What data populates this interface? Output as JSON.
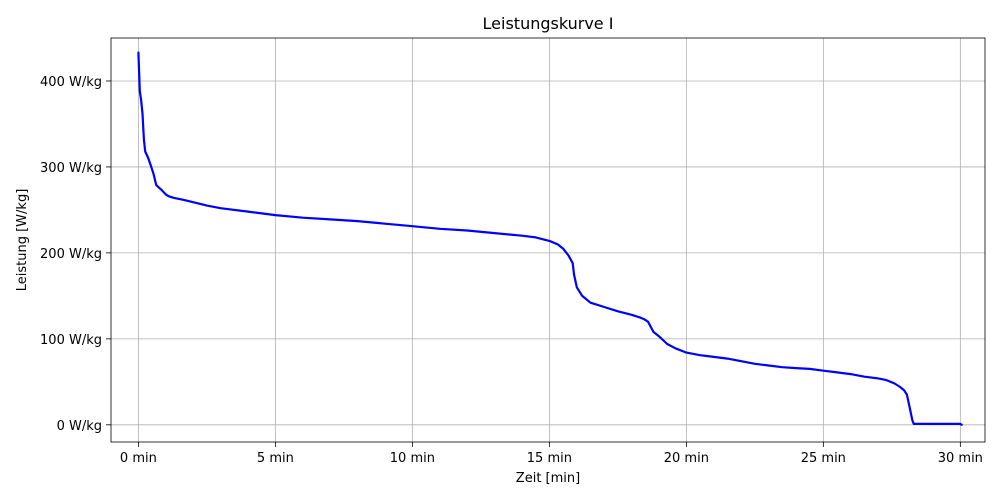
{
  "chart_data": {
    "type": "line",
    "title": "Leistungskurve I",
    "xlabel": "Zeit [min]",
    "ylabel": "Leistung [W/kg]",
    "xlim": [
      -1.0,
      30.9
    ],
    "ylim": [
      -20,
      450
    ],
    "grid": true,
    "x_ticks": [
      {
        "value": 0,
        "label": "0 min"
      },
      {
        "value": 5,
        "label": "5 min"
      },
      {
        "value": 10,
        "label": "10 min"
      },
      {
        "value": 15,
        "label": "15 min"
      },
      {
        "value": 20,
        "label": "20 min"
      },
      {
        "value": 25,
        "label": "25 min"
      },
      {
        "value": 30,
        "label": "30 min"
      }
    ],
    "y_ticks": [
      {
        "value": 0,
        "label": "0 W/kg"
      },
      {
        "value": 100,
        "label": "100 W/kg"
      },
      {
        "value": 200,
        "label": "200 W/kg"
      },
      {
        "value": 300,
        "label": "300 W/kg"
      },
      {
        "value": 400,
        "label": "400 W/kg"
      }
    ],
    "series": [
      {
        "color": "#0000ff",
        "x": [
          0.0,
          0.05,
          0.1,
          0.15,
          0.2,
          0.25,
          0.35,
          0.45,
          0.55,
          0.65,
          0.75,
          0.85,
          1.0,
          1.1,
          1.3,
          1.6,
          2.0,
          2.5,
          3.0,
          4.0,
          5.0,
          6.0,
          7.0,
          8.0,
          9.0,
          10.0,
          11.0,
          12.0,
          13.0,
          14.0,
          14.5,
          15.0,
          15.3,
          15.5,
          15.7,
          15.85,
          15.9,
          16.0,
          16.2,
          16.5,
          17.0,
          17.5,
          18.0,
          18.3,
          18.45,
          18.6,
          18.8,
          19.0,
          19.3,
          19.6,
          20.0,
          20.5,
          21.0,
          21.5,
          22.0,
          22.5,
          23.0,
          23.5,
          24.0,
          24.5,
          25.0,
          25.5,
          26.0,
          26.5,
          27.0,
          27.3,
          27.6,
          27.8,
          27.95,
          28.05,
          28.15,
          28.25,
          28.3,
          28.4,
          29.0,
          29.5,
          30.0,
          30.05
        ],
        "y": [
          433,
          388,
          378,
          362,
          332,
          318,
          311,
          302,
          292,
          279,
          276,
          273,
          268,
          266,
          264,
          262,
          259,
          255,
          252,
          248,
          244,
          241,
          239,
          237,
          234,
          231,
          228,
          226,
          223,
          220,
          218,
          214,
          210,
          205,
          197,
          188,
          175,
          160,
          150,
          142,
          137,
          132,
          128,
          125,
          123,
          120,
          108,
          103,
          94,
          89,
          84,
          81,
          79,
          77,
          74,
          71,
          69,
          67,
          66,
          65,
          63,
          61,
          59,
          56,
          54,
          52,
          48,
          44,
          40,
          35,
          20,
          5,
          1,
          1,
          1,
          1,
          1,
          0
        ]
      }
    ]
  }
}
